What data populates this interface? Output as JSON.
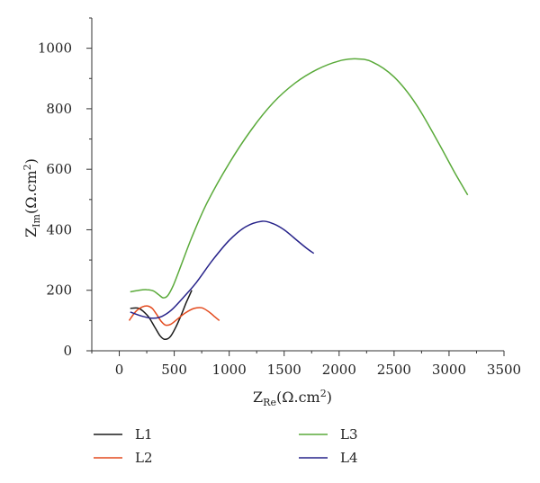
{
  "chart_data": {
    "type": "line",
    "xlabel": {
      "main": "Z",
      "sub": "Re",
      "unit": "(Ω.cm",
      "sup": "2",
      "close": ")"
    },
    "ylabel": {
      "main": "Z",
      "sub": "Im",
      "unit": "(Ω.cm",
      "sup": "2",
      "close": ")"
    },
    "xlim": [
      -250,
      3500
    ],
    "ylim": [
      0,
      1100
    ],
    "xticks": [
      0,
      500,
      1000,
      1500,
      2000,
      2500,
      3000,
      3500
    ],
    "yticks": [
      0,
      200,
      400,
      600,
      800,
      1000
    ],
    "grid": false,
    "legend_position": "bottom",
    "series": [
      {
        "name": "L1",
        "color": "#1a1a1a",
        "x": [
          100,
          180,
          260,
          320,
          370,
          410,
          460,
          510,
          560,
          610,
          660
        ],
        "y": [
          140,
          140,
          115,
          80,
          50,
          38,
          45,
          75,
          115,
          160,
          200
        ]
      },
      {
        "name": "L2",
        "color": "#e34a1e",
        "x": [
          90,
          150,
          210,
          260,
          300,
          340,
          380,
          420,
          470,
          530,
          600,
          680,
          750,
          810,
          870,
          910
        ],
        "y": [
          100,
          130,
          145,
          148,
          140,
          120,
          98,
          85,
          88,
          105,
          125,
          140,
          142,
          130,
          112,
          100
        ]
      },
      {
        "name": "L3",
        "color": "#5aaa3a",
        "x": [
          100,
          180,
          250,
          310,
          360,
          400,
          440,
          490,
          560,
          660,
          800,
          1000,
          1200,
          1400,
          1600,
          1800,
          2000,
          2150,
          2300,
          2500,
          2700,
          2900,
          3050,
          3170
        ],
        "y": [
          195,
          200,
          202,
          198,
          185,
          175,
          182,
          215,
          280,
          375,
          490,
          620,
          730,
          820,
          885,
          930,
          958,
          965,
          955,
          905,
          815,
          690,
          590,
          515
        ]
      },
      {
        "name": "L4",
        "color": "#27238a",
        "x": [
          100,
          200,
          290,
          360,
          420,
          490,
          580,
          700,
          850,
          1000,
          1150,
          1300,
          1400,
          1500,
          1600,
          1700,
          1770
        ],
        "y": [
          128,
          115,
          108,
          110,
          120,
          140,
          175,
          225,
          300,
          365,
          410,
          428,
          420,
          400,
          370,
          340,
          322
        ]
      }
    ]
  }
}
